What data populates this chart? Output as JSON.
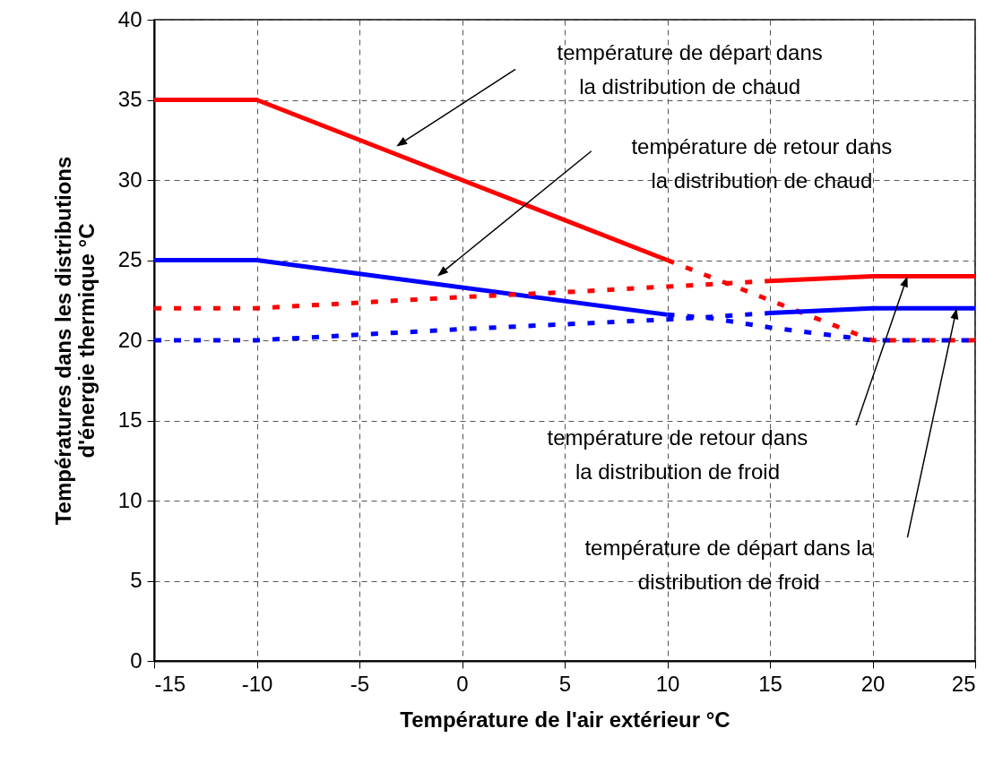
{
  "chart_data": {
    "type": "line",
    "xlabel": "Température de l'air extérieur °C",
    "ylabel": "Températures dans les distributions\nd'énergie thermique °C",
    "xlim": [
      -15,
      25
    ],
    "xticks": [
      -15,
      -10,
      -5,
      0,
      5,
      10,
      15,
      20,
      25
    ],
    "ylim": [
      0,
      40
    ],
    "yticks": [
      0,
      5,
      10,
      15,
      20,
      25,
      30,
      35,
      40
    ],
    "grid": true,
    "marker": "none",
    "series": [
      {
        "color": "#ff0000",
        "line_style": "solid",
        "x": [
          -15,
          -10,
          10
        ],
        "values": [
          35,
          35,
          25
        ]
      },
      {
        "color": "#ff0000",
        "line_style": "dashed",
        "x": [
          10,
          20,
          25
        ],
        "values": [
          25,
          20,
          20
        ]
      },
      {
        "color": "#0000ff",
        "line_style": "solid",
        "x": [
          -15,
          -10,
          10
        ],
        "values": [
          25,
          25,
          21.6
        ]
      },
      {
        "color": "#0000ff",
        "line_style": "dashed",
        "x": [
          10,
          12,
          15,
          20,
          25
        ],
        "values": [
          21.6,
          21.4,
          20.8,
          20,
          20
        ]
      },
      {
        "color": "#ff0000",
        "line_style": "dashed",
        "x": [
          -15,
          -10,
          0,
          5,
          10,
          15
        ],
        "values": [
          22,
          22,
          22.7,
          23,
          23.35,
          23.7
        ]
      },
      {
        "color": "#ff0000",
        "line_style": "solid",
        "x": [
          15,
          20,
          25
        ],
        "values": [
          23.7,
          24,
          24
        ]
      },
      {
        "color": "#0000ff",
        "line_style": "dashed",
        "x": [
          -15,
          -10,
          0,
          5,
          10,
          12,
          15
        ],
        "values": [
          20,
          20,
          20.7,
          21,
          21.3,
          21.45,
          21.7
        ]
      },
      {
        "color": "#0000ff",
        "line_style": "solid",
        "x": [
          15,
          20,
          25
        ],
        "values": [
          21.7,
          22,
          22
        ]
      }
    ],
    "annotations": [
      "température de départ dans\nla distribution de chaud",
      "température de retour dans\nla distribution de chaud",
      "température de retour dans\nla distribution de froid",
      "température de départ dans la\ndistribution de froid"
    ]
  }
}
